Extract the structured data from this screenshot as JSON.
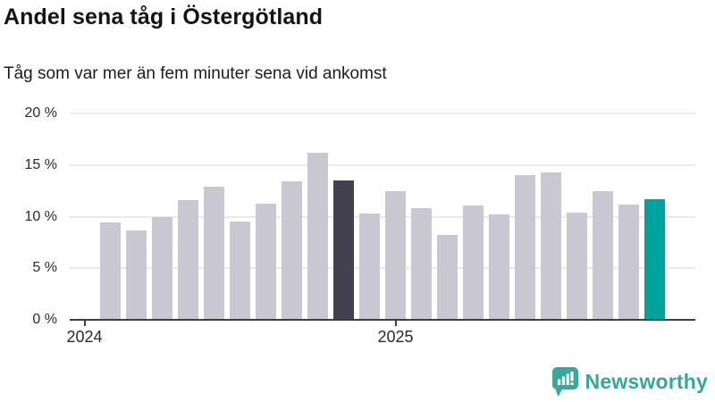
{
  "header": {
    "title": "Andel sena tåg i Östergötland",
    "subtitle": "Tåg som var mer än fem minuter sena vid ankomst"
  },
  "chart_data": {
    "type": "bar",
    "title": "Andel sena tåg i Östergötland",
    "subtitle": "Tåg som var mer än fem minuter sena vid ankomst",
    "unit": "%",
    "x": [
      "2024-02",
      "2024-03",
      "2024-04",
      "2024-05",
      "2024-06",
      "2024-07",
      "2024-08",
      "2024-09",
      "2024-10",
      "2024-11",
      "2024-12",
      "2025-01",
      "2025-02",
      "2025-03",
      "2025-04",
      "2025-05",
      "2025-06",
      "2025-07",
      "2025-08",
      "2025-09",
      "2025-10",
      "2025-11"
    ],
    "values": [
      9.4,
      8.7,
      10.0,
      11.6,
      12.9,
      9.5,
      11.3,
      13.4,
      16.2,
      13.5,
      10.3,
      12.5,
      10.8,
      8.2,
      11.1,
      10.2,
      14.0,
      14.3,
      10.4,
      12.5,
      11.2,
      11.7
    ],
    "ylim": [
      0,
      20
    ],
    "ytick_values": [
      0,
      5,
      10,
      15,
      20
    ],
    "ytick_labels": [
      "0 %",
      "5 %",
      "10 %",
      "15 %",
      "20 %"
    ],
    "xticks": [
      {
        "label": "2024",
        "month": "2024-01"
      },
      {
        "label": "2025",
        "month": "2025-01"
      }
    ],
    "grid": true,
    "legend": "none",
    "colors": {
      "default_bar": "#c9c7d1",
      "highlight_dark_bar": "#434050",
      "highlight_teal_bar": "#00a39b",
      "gridline": "#e9e9e9",
      "axis": "#3d3d3d"
    },
    "highlighted_months": {
      "dark": "2024-11",
      "teal": "2025-11"
    }
  },
  "footer": {
    "brand_label": "Newsworthy",
    "brand_color": "#35a79d",
    "logo_icon": "newsworthy-speech-bubble-bar-chart-icon"
  }
}
